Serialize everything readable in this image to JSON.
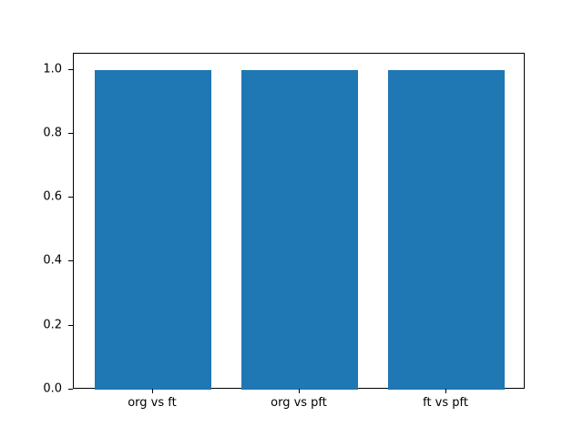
{
  "chart_data": {
    "type": "bar",
    "categories": [
      "org vs ft",
      "org vs pft",
      "ft vs pft"
    ],
    "values": [
      1.0,
      1.0,
      1.0
    ],
    "title": "",
    "xlabel": "",
    "ylabel": "",
    "xlim": [
      -0.54,
      2.54
    ],
    "ylim": [
      0,
      1.05
    ],
    "yticks": [
      0.0,
      0.2,
      0.4,
      0.6,
      0.8,
      1.0
    ],
    "ytick_labels": [
      "0.0",
      "0.2",
      "0.4",
      "0.6",
      "0.8",
      "1.0"
    ],
    "bar_width": 0.8,
    "bar_color": "#1f77b4",
    "grid": false,
    "legend": null,
    "spine_color": "#000000",
    "background_color": "#ffffff"
  }
}
